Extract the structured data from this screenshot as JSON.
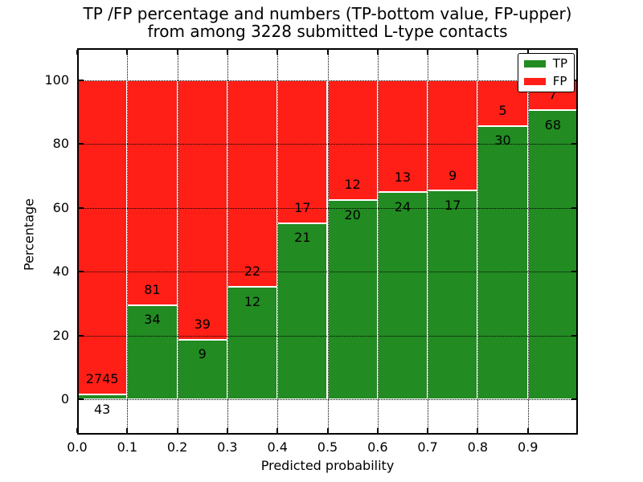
{
  "chart_data": {
    "type": "bar",
    "stacked": true,
    "normalized_to_percent": true,
    "title": "TP /FP percentage and numbers (TP-bottom value, FP-upper)",
    "subtitle": "from among 3228 submitted L-type contacts",
    "xlabel": "Predicted probability",
    "ylabel": "Percentage",
    "xlim": [
      0.0,
      1.0
    ],
    "ylim": [
      -11,
      110
    ],
    "grid": "dotted-black-over-bars",
    "bin_width": 0.1,
    "bin_starts": [
      0.0,
      0.1,
      0.2,
      0.3,
      0.4,
      0.5,
      0.6,
      0.7,
      0.8,
      0.9
    ],
    "series": [
      {
        "name": "TP",
        "color": "#228b22",
        "counts": [
          43,
          34,
          9,
          12,
          21,
          20,
          24,
          17,
          30,
          68
        ]
      },
      {
        "name": "FP",
        "color": "#ff1f17",
        "counts": [
          2745,
          81,
          39,
          22,
          17,
          12,
          13,
          9,
          5,
          7
        ]
      }
    ],
    "tp_percent_of_bin": [
      1.5,
      29.6,
      18.8,
      35.3,
      55.3,
      62.5,
      64.9,
      65.4,
      85.7,
      90.7
    ],
    "total_contacts": 3228,
    "xticks": [
      "0.0",
      "0.1",
      "0.2",
      "0.3",
      "0.4",
      "0.5",
      "0.6",
      "0.7",
      "0.8",
      "0.9"
    ],
    "yticks": [
      "0",
      "20",
      "40",
      "60",
      "80",
      "100"
    ],
    "ytick_values": [
      0,
      20,
      40,
      60,
      80,
      100
    ],
    "legend": {
      "position": "upper right",
      "entries": [
        {
          "label": "TP",
          "color": "#228b22"
        },
        {
          "label": "FP",
          "color": "#ff1f17"
        }
      ]
    }
  }
}
